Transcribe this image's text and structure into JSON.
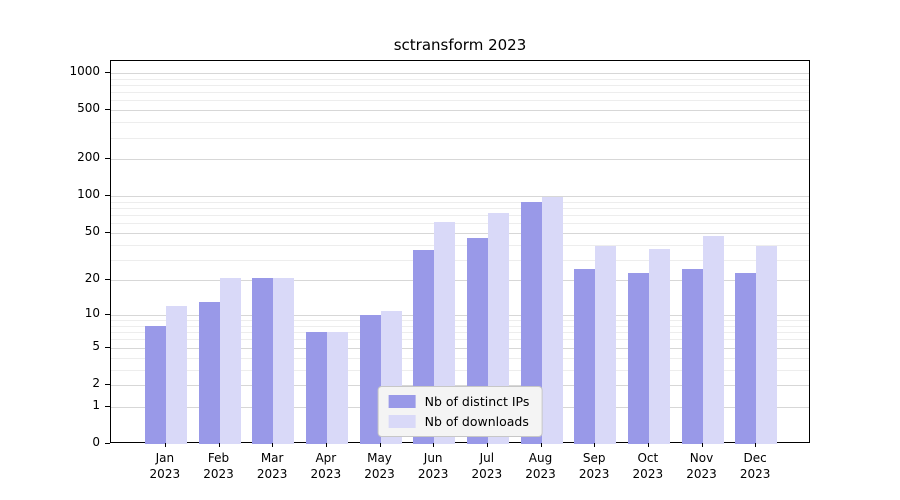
{
  "chart_data": {
    "type": "bar",
    "title": "sctransform 2023",
    "x_labels": [
      [
        "Jan",
        "2023"
      ],
      [
        "Feb",
        "2023"
      ],
      [
        "Mar",
        "2023"
      ],
      [
        "Apr",
        "2023"
      ],
      [
        "May",
        "2023"
      ],
      [
        "Jun",
        "2023"
      ],
      [
        "Jul",
        "2023"
      ],
      [
        "Aug",
        "2023"
      ],
      [
        "Sep",
        "2023"
      ],
      [
        "Oct",
        "2023"
      ],
      [
        "Nov",
        "2023"
      ],
      [
        "Dec",
        "2023"
      ]
    ],
    "series": [
      {
        "name": "Nb of distinct IPs",
        "color": "#9999e8",
        "values": [
          8,
          13,
          21,
          7,
          10,
          36,
          45,
          89,
          25,
          23,
          25,
          23
        ]
      },
      {
        "name": "Nb of downloads",
        "color": "#d9d9f8",
        "values": [
          12,
          21,
          21,
          7,
          11,
          61,
          73,
          98,
          39,
          37,
          47,
          39
        ]
      }
    ],
    "y_ticks": [
      0,
      1,
      2,
      5,
      10,
      20,
      50,
      100,
      200,
      500,
      1000
    ],
    "y_scale": "log10(value+1)",
    "ylim": [
      0,
      1250
    ],
    "grid": true,
    "legend_position": "bottom-center"
  }
}
